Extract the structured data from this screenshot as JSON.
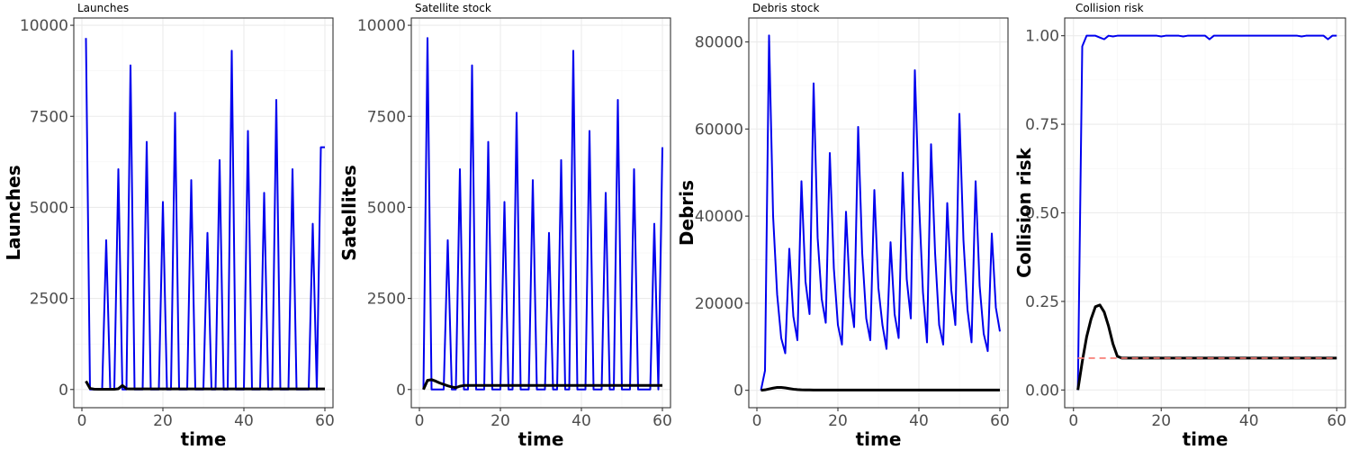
{
  "chart_data": [
    {
      "type": "line",
      "title": "Launches",
      "xlabel": "time",
      "ylabel": "Launches",
      "xlim": [
        -2,
        62
      ],
      "ylim": [
        -500,
        10200
      ],
      "x_ticks": [
        0,
        20,
        40,
        60
      ],
      "y_ticks": [
        0,
        2500,
        5000,
        7500,
        10000
      ],
      "y_tick_labels": [
        "0",
        "2500",
        "5000",
        "7500",
        "10000"
      ],
      "grid": true,
      "series": [
        {
          "color": "#0000ee",
          "width": 2,
          "x": [
            1,
            2,
            3,
            4,
            5,
            6,
            7,
            8,
            9,
            10,
            11,
            12,
            13,
            14,
            15,
            16,
            17,
            18,
            19,
            20,
            21,
            22,
            23,
            24,
            25,
            26,
            27,
            28,
            29,
            30,
            31,
            32,
            33,
            34,
            35,
            36,
            37,
            38,
            39,
            40,
            41,
            42,
            43,
            44,
            45,
            46,
            47,
            48,
            49,
            50,
            51,
            52,
            53,
            54,
            55,
            56,
            57,
            58,
            59,
            60
          ],
          "y": [
            9650,
            0,
            0,
            0,
            0,
            4100,
            0,
            0,
            6050,
            0,
            0,
            8900,
            0,
            0,
            0,
            6800,
            0,
            0,
            0,
            5150,
            0,
            0,
            7600,
            0,
            0,
            0,
            5750,
            0,
            0,
            0,
            4300,
            0,
            0,
            6300,
            0,
            0,
            9300,
            0,
            0,
            0,
            7100,
            0,
            0,
            0,
            5400,
            0,
            0,
            7950,
            0,
            0,
            0,
            6050,
            0,
            0,
            0,
            0,
            4550,
            0,
            6650,
            6650
          ]
        },
        {
          "color": "#000000",
          "width": 3,
          "x": [
            1,
            2,
            3,
            4,
            5,
            6,
            7,
            8,
            9,
            10,
            11,
            12,
            13,
            14,
            15,
            16,
            17,
            18,
            19,
            20,
            21,
            22,
            23,
            24,
            25,
            26,
            27,
            28,
            29,
            30,
            31,
            32,
            33,
            34,
            35,
            36,
            37,
            38,
            39,
            40,
            41,
            42,
            43,
            44,
            45,
            46,
            47,
            48,
            49,
            50,
            51,
            52,
            53,
            54,
            55,
            56,
            57,
            58,
            59,
            60
          ],
          "y": [
            230,
            30,
            10,
            5,
            5,
            5,
            5,
            5,
            20,
            110,
            20,
            15,
            15,
            15,
            15,
            15,
            15,
            15,
            15,
            15,
            15,
            15,
            15,
            15,
            15,
            15,
            15,
            15,
            15,
            15,
            15,
            15,
            15,
            15,
            15,
            15,
            15,
            15,
            15,
            15,
            15,
            15,
            15,
            15,
            15,
            15,
            15,
            15,
            15,
            15,
            15,
            15,
            15,
            15,
            15,
            15,
            15,
            15,
            15,
            15
          ]
        }
      ]
    },
    {
      "type": "line",
      "title": "Satellite stock",
      "xlabel": "time",
      "ylabel": "Satellites",
      "xlim": [
        -2,
        62
      ],
      "ylim": [
        -500,
        10200
      ],
      "x_ticks": [
        0,
        20,
        40,
        60
      ],
      "y_ticks": [
        0,
        2500,
        5000,
        7500,
        10000
      ],
      "y_tick_labels": [
        "0",
        "2500",
        "5000",
        "7500",
        "10000"
      ],
      "grid": true,
      "series": [
        {
          "color": "#0000ee",
          "width": 2,
          "x": [
            1,
            2,
            3,
            4,
            5,
            6,
            7,
            8,
            9,
            10,
            11,
            12,
            13,
            14,
            15,
            16,
            17,
            18,
            19,
            20,
            21,
            22,
            23,
            24,
            25,
            26,
            27,
            28,
            29,
            30,
            31,
            32,
            33,
            34,
            35,
            36,
            37,
            38,
            39,
            40,
            41,
            42,
            43,
            44,
            45,
            46,
            47,
            48,
            49,
            50,
            51,
            52,
            53,
            54,
            55,
            56,
            57,
            58,
            59,
            60
          ],
          "y": [
            0,
            9650,
            0,
            0,
            0,
            0,
            4100,
            0,
            0,
            6050,
            0,
            0,
            8900,
            0,
            0,
            0,
            6800,
            0,
            0,
            0,
            5150,
            0,
            0,
            7600,
            0,
            0,
            0,
            5750,
            0,
            0,
            0,
            4300,
            0,
            0,
            6300,
            0,
            0,
            9300,
            0,
            0,
            0,
            7100,
            0,
            0,
            0,
            5400,
            0,
            0,
            7950,
            0,
            0,
            0,
            6050,
            0,
            0,
            0,
            0,
            4550,
            0,
            6650
          ]
        },
        {
          "color": "#000000",
          "width": 3,
          "x": [
            1,
            2,
            3,
            4,
            5,
            6,
            7,
            8,
            9,
            10,
            11,
            12,
            13,
            14,
            15,
            16,
            17,
            18,
            19,
            20,
            21,
            22,
            23,
            24,
            25,
            26,
            27,
            28,
            29,
            30,
            31,
            32,
            33,
            34,
            35,
            36,
            37,
            38,
            39,
            40,
            41,
            42,
            43,
            44,
            45,
            46,
            47,
            48,
            49,
            50,
            51,
            52,
            53,
            54,
            55,
            56,
            57,
            58,
            59,
            60
          ],
          "y": [
            0,
            250,
            270,
            230,
            180,
            140,
            100,
            70,
            50,
            90,
            110,
            110,
            110,
            110,
            110,
            110,
            110,
            110,
            110,
            110,
            110,
            110,
            110,
            110,
            110,
            110,
            110,
            110,
            110,
            110,
            110,
            110,
            110,
            110,
            110,
            110,
            110,
            110,
            110,
            110,
            110,
            110,
            110,
            110,
            110,
            110,
            110,
            110,
            110,
            110,
            110,
            110,
            110,
            110,
            110,
            110,
            110,
            110,
            110,
            110
          ]
        }
      ]
    },
    {
      "type": "line",
      "title": "Debris stock",
      "xlabel": "time",
      "ylabel": "Debris",
      "xlim": [
        -2,
        62
      ],
      "ylim": [
        -4000,
        85500
      ],
      "x_ticks": [
        0,
        20,
        40,
        60
      ],
      "y_ticks": [
        0,
        20000,
        40000,
        60000,
        80000
      ],
      "y_tick_labels": [
        "0",
        "20000",
        "40000",
        "60000",
        "80000"
      ],
      "grid": true,
      "series": [
        {
          "color": "#0000ee",
          "width": 2,
          "x": [
            1,
            2,
            3,
            4,
            5,
            6,
            7,
            8,
            9,
            10,
            11,
            12,
            13,
            14,
            15,
            16,
            17,
            18,
            19,
            20,
            21,
            22,
            23,
            24,
            25,
            26,
            27,
            28,
            29,
            30,
            31,
            32,
            33,
            34,
            35,
            36,
            37,
            38,
            39,
            40,
            41,
            42,
            43,
            44,
            45,
            46,
            47,
            48,
            49,
            50,
            51,
            52,
            53,
            54,
            55,
            56,
            57,
            58,
            59,
            60
          ],
          "y": [
            0,
            4500,
            81500,
            40000,
            22000,
            12000,
            8500,
            32500,
            17000,
            11500,
            48000,
            25000,
            17500,
            70500,
            35000,
            21000,
            15500,
            54500,
            28000,
            15000,
            10500,
            41000,
            21500,
            14500,
            60500,
            31500,
            16500,
            11500,
            46000,
            23500,
            15000,
            9500,
            34000,
            17500,
            12000,
            50000,
            25500,
            16500,
            73500,
            44000,
            22500,
            11000,
            56500,
            31500,
            15000,
            10500,
            43000,
            23000,
            15000,
            63500,
            34500,
            18500,
            11000,
            48000,
            24000,
            13000,
            9000,
            36000,
            19000,
            13500
          ]
        },
        {
          "color": "#000000",
          "width": 3,
          "x": [
            1,
            2,
            3,
            4,
            5,
            6,
            7,
            8,
            9,
            10,
            11,
            12,
            13,
            14,
            15,
            16,
            17,
            18,
            19,
            20,
            21,
            22,
            23,
            24,
            25,
            26,
            27,
            28,
            29,
            30,
            31,
            32,
            33,
            34,
            35,
            36,
            37,
            38,
            39,
            40,
            41,
            42,
            43,
            44,
            45,
            46,
            47,
            48,
            49,
            50,
            51,
            52,
            53,
            54,
            55,
            56,
            57,
            58,
            59,
            60
          ],
          "y": [
            0,
            100,
            300,
            500,
            650,
            650,
            550,
            400,
            250,
            150,
            100,
            80,
            70,
            60,
            50,
            50,
            50,
            50,
            50,
            50,
            50,
            50,
            50,
            50,
            50,
            50,
            50,
            50,
            50,
            50,
            50,
            50,
            50,
            50,
            50,
            50,
            50,
            50,
            50,
            50,
            50,
            50,
            50,
            50,
            50,
            50,
            50,
            50,
            50,
            50,
            50,
            50,
            50,
            50,
            50,
            50,
            50,
            50,
            50,
            50
          ]
        }
      ]
    },
    {
      "type": "line",
      "title": "Collision risk",
      "xlabel": "time",
      "ylabel": "Collision risk",
      "xlim": [
        -2,
        62
      ],
      "ylim": [
        -0.05,
        1.05
      ],
      "x_ticks": [
        0,
        20,
        40,
        60
      ],
      "y_ticks": [
        0,
        0.25,
        0.5,
        0.75,
        1
      ],
      "y_tick_labels": [
        "0.00",
        "0.25",
        "0.50",
        "0.75",
        "1.00"
      ],
      "grid": true,
      "series": [
        {
          "color": "#0000ee",
          "width": 2,
          "x": [
            1,
            2,
            3,
            4,
            5,
            6,
            7,
            8,
            9,
            10,
            11,
            12,
            13,
            14,
            15,
            16,
            17,
            18,
            19,
            20,
            21,
            22,
            23,
            24,
            25,
            26,
            27,
            28,
            29,
            30,
            31,
            32,
            33,
            34,
            35,
            36,
            37,
            38,
            39,
            40,
            41,
            42,
            43,
            44,
            45,
            46,
            47,
            48,
            49,
            50,
            51,
            52,
            53,
            54,
            55,
            56,
            57,
            58,
            59,
            60
          ],
          "y": [
            0,
            0.97,
            1,
            1,
            1,
            0.995,
            0.99,
            1,
            0.998,
            1,
            1,
            1,
            1,
            1,
            1,
            1,
            1,
            1,
            1,
            0.998,
            1,
            1,
            1,
            1,
            0.998,
            1,
            1,
            1,
            1,
            1,
            0.99,
            1,
            1,
            1,
            1,
            1,
            1,
            1,
            1,
            1,
            1,
            1,
            1,
            1,
            1,
            1,
            1,
            1,
            1,
            1,
            1,
            0.998,
            1,
            1,
            1,
            1,
            1,
            0.99,
            1,
            1
          ]
        },
        {
          "color": "#000000",
          "width": 3,
          "x": [
            1,
            2,
            3,
            4,
            5,
            6,
            7,
            8,
            9,
            10,
            11,
            12,
            13,
            14,
            15,
            16,
            17,
            18,
            19,
            20,
            21,
            22,
            23,
            24,
            25,
            26,
            27,
            28,
            29,
            30,
            31,
            32,
            33,
            34,
            35,
            36,
            37,
            38,
            39,
            40,
            41,
            42,
            43,
            44,
            45,
            46,
            47,
            48,
            49,
            50,
            51,
            52,
            53,
            54,
            55,
            56,
            57,
            58,
            59,
            60
          ],
          "y": [
            0,
            0.08,
            0.15,
            0.2,
            0.235,
            0.24,
            0.22,
            0.18,
            0.13,
            0.095,
            0.09,
            0.09,
            0.09,
            0.09,
            0.09,
            0.09,
            0.09,
            0.09,
            0.09,
            0.09,
            0.09,
            0.09,
            0.09,
            0.09,
            0.09,
            0.09,
            0.09,
            0.09,
            0.09,
            0.09,
            0.09,
            0.09,
            0.09,
            0.09,
            0.09,
            0.09,
            0.09,
            0.09,
            0.09,
            0.09,
            0.09,
            0.09,
            0.09,
            0.09,
            0.09,
            0.09,
            0.09,
            0.09,
            0.09,
            0.09,
            0.09,
            0.09,
            0.09,
            0.09,
            0.09,
            0.09,
            0.09,
            0.09,
            0.09,
            0.09
          ]
        },
        {
          "color": "#f8766d",
          "width": 1.6,
          "dashed": true,
          "x": [
            1,
            60
          ],
          "y": [
            0.09,
            0.09
          ]
        }
      ]
    }
  ]
}
